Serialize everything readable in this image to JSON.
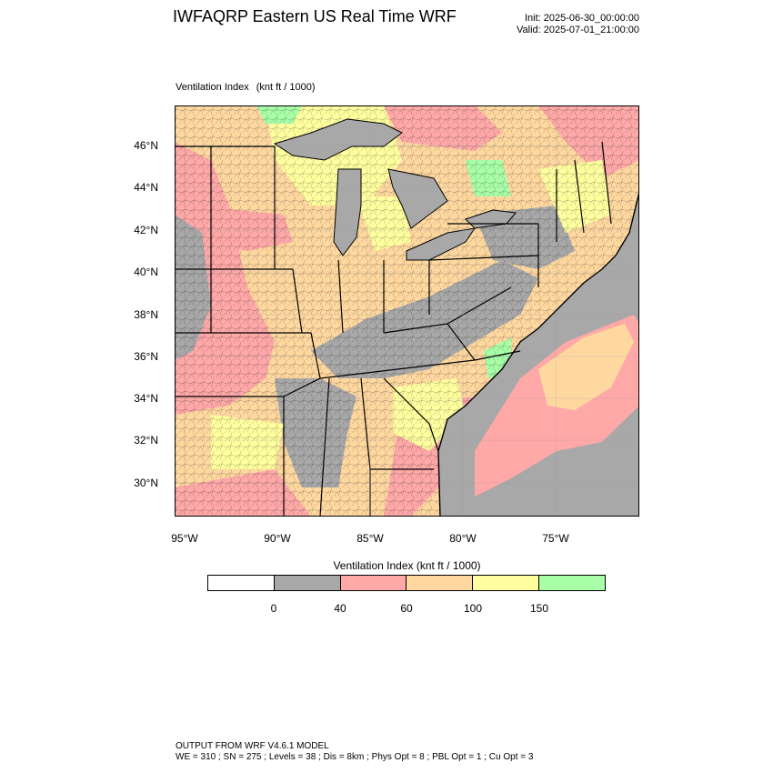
{
  "header": {
    "title": "IWFAQRP Eastern US Real Time WRF",
    "init": "Init: 2025-06-30_00:00:00",
    "valid": "Valid: 2025-07-01_21:00:00"
  },
  "field": {
    "name": "Ventilation Index",
    "units": "(knt ft / 1000)"
  },
  "axes": {
    "lat_labels": [
      "46°N",
      "44°N",
      "42°N",
      "40°N",
      "38°N",
      "36°N",
      "34°N",
      "32°N",
      "30°N"
    ],
    "lon_labels": [
      "95°W",
      "90°W",
      "85°W",
      "80°W",
      "75°W"
    ]
  },
  "colorbar": {
    "title": "Ventilation Index  (knt ft / 1000)",
    "colors": [
      "#ffffff",
      "#a8a8a8",
      "#ffa8a8",
      "#ffd8a0",
      "#ffff9f",
      "#a8ffa8"
    ],
    "labels": [
      "0",
      "40",
      "60",
      "100",
      "150"
    ]
  },
  "colors": {
    "water": "#a8a8a8",
    "border": "#000000"
  },
  "footer": {
    "line1": "OUTPUT FROM WRF V4.6.1 MODEL",
    "line2": "WE = 310 ; SN = 275 ; Levels = 38 ; Dis = 8km ; Phys Opt = 8 ; PBL Opt = 1 ; Cu Opt = 3"
  }
}
